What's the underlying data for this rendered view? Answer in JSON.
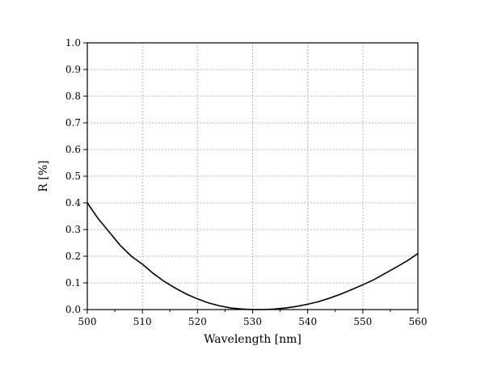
{
  "chart_data": {
    "type": "line",
    "title": "",
    "xlabel": "Wavelength [nm]",
    "ylabel": "R [%]",
    "xlim": [
      500,
      560
    ],
    "ylim": [
      0,
      1.0
    ],
    "x_ticks": [
      500,
      510,
      520,
      530,
      540,
      550,
      560
    ],
    "y_ticks": [
      0.0,
      0.1,
      0.2,
      0.3,
      0.4,
      0.5,
      0.6,
      0.7,
      0.8,
      0.9,
      1.0
    ],
    "x_tick_labels": [
      "500",
      "510",
      "520",
      "530",
      "540",
      "550",
      "560"
    ],
    "y_tick_labels": [
      "0.0",
      "0.1",
      "0.2",
      "0.3",
      "0.4",
      "0.5",
      "0.6",
      "0.7",
      "0.8",
      "0.9",
      "1.0"
    ],
    "grid": true,
    "legend": "none",
    "line_color": "#000000",
    "series": [
      {
        "x": [
          500,
          502,
          504,
          506,
          508,
          510,
          512,
          514,
          516,
          518,
          520,
          522,
          524,
          526,
          528,
          530,
          532,
          534,
          536,
          538,
          540,
          542,
          544,
          546,
          548,
          550,
          552,
          554,
          556,
          558,
          560
        ],
        "values": [
          0.4,
          0.34,
          0.29,
          0.24,
          0.2,
          0.17,
          0.135,
          0.105,
          0.08,
          0.058,
          0.04,
          0.025,
          0.014,
          0.006,
          0.002,
          0.0,
          0.0,
          0.002,
          0.006,
          0.012,
          0.02,
          0.03,
          0.043,
          0.058,
          0.075,
          0.093,
          0.112,
          0.135,
          0.158,
          0.182,
          0.21
        ]
      }
    ]
  }
}
